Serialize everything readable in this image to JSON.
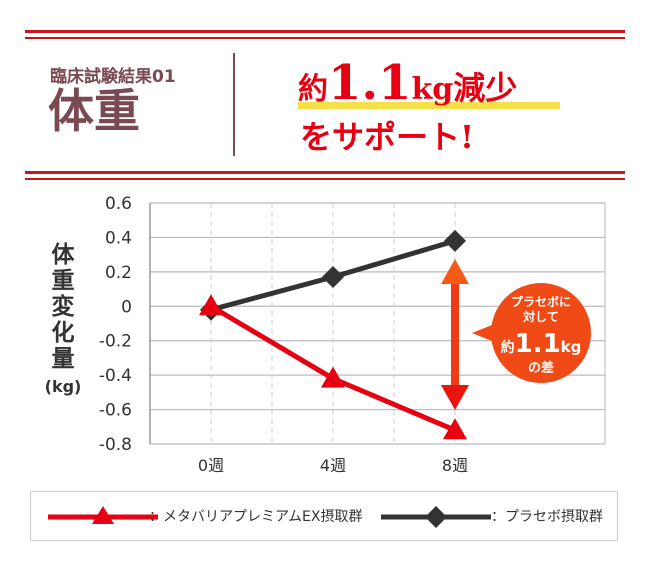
{
  "header": {
    "subtitle": "臨床試験結果01",
    "title": "体重",
    "catch_prefix": "約",
    "catch_number": "1.1",
    "catch_unit": "kg",
    "catch_suffix": "減少",
    "catch_line2": "をサポート!"
  },
  "colors": {
    "accent": "#c8161d",
    "red_series": "#e60012",
    "black_series": "#333333",
    "title": "#7a4a52",
    "highlight": "#f5e04a",
    "callout": "#f04a16"
  },
  "callout": {
    "line1": "プラセボに",
    "line2": "対して",
    "prefix": "約",
    "number": "1.1",
    "unit": "kg",
    "line4": "の差"
  },
  "chart_data": {
    "type": "line",
    "ylabel": "体重変化量",
    "yunit": "(kg)",
    "categories": [
      "0週",
      "4週",
      "8週"
    ],
    "ylim": [
      -0.8,
      0.6
    ],
    "yticks": [
      "0.6",
      "0.4",
      "0.2",
      "0",
      "-0.2",
      "-0.4",
      "-0.6",
      "-0.8"
    ],
    "grid": true,
    "legend_placement": "bottom",
    "series": [
      {
        "name": "：メタバリアプレミアムEX摂取群",
        "marker": "triangle",
        "color": "#e60012",
        "values": [
          0,
          -0.42,
          -0.72
        ]
      },
      {
        "name": "：プラセボ摂取群",
        "marker": "diamond",
        "color": "#333333",
        "values": [
          -0.02,
          0.17,
          0.38
        ]
      }
    ]
  }
}
